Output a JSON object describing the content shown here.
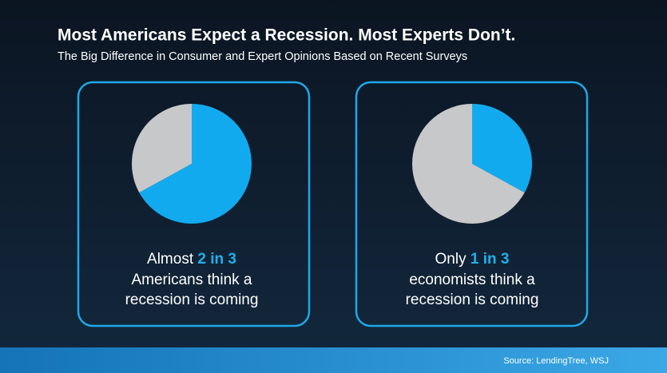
{
  "title": "Most Americans Expect a Recession. Most Experts Don’t.",
  "subtitle": "The Big Difference in Consumer and Expert Opinions Based on Recent Surveys",
  "source": "Source: LendingTree, WSJ",
  "chart_data": [
    {
      "type": "pie",
      "values": [
        67,
        33
      ],
      "colors": [
        "#12aaee",
        "#c6c8ca"
      ],
      "caption": {
        "prefix": "Almost",
        "highlight": "2 in 3",
        "lines": [
          "Americans think a",
          "recession is coming"
        ]
      }
    },
    {
      "type": "pie",
      "values": [
        33,
        67
      ],
      "colors": [
        "#12aaee",
        "#c6c8ca"
      ],
      "caption": {
        "prefix": "Only",
        "highlight": "1 in 3",
        "lines": [
          "economists think a",
          "recession is coming"
        ]
      }
    }
  ]
}
